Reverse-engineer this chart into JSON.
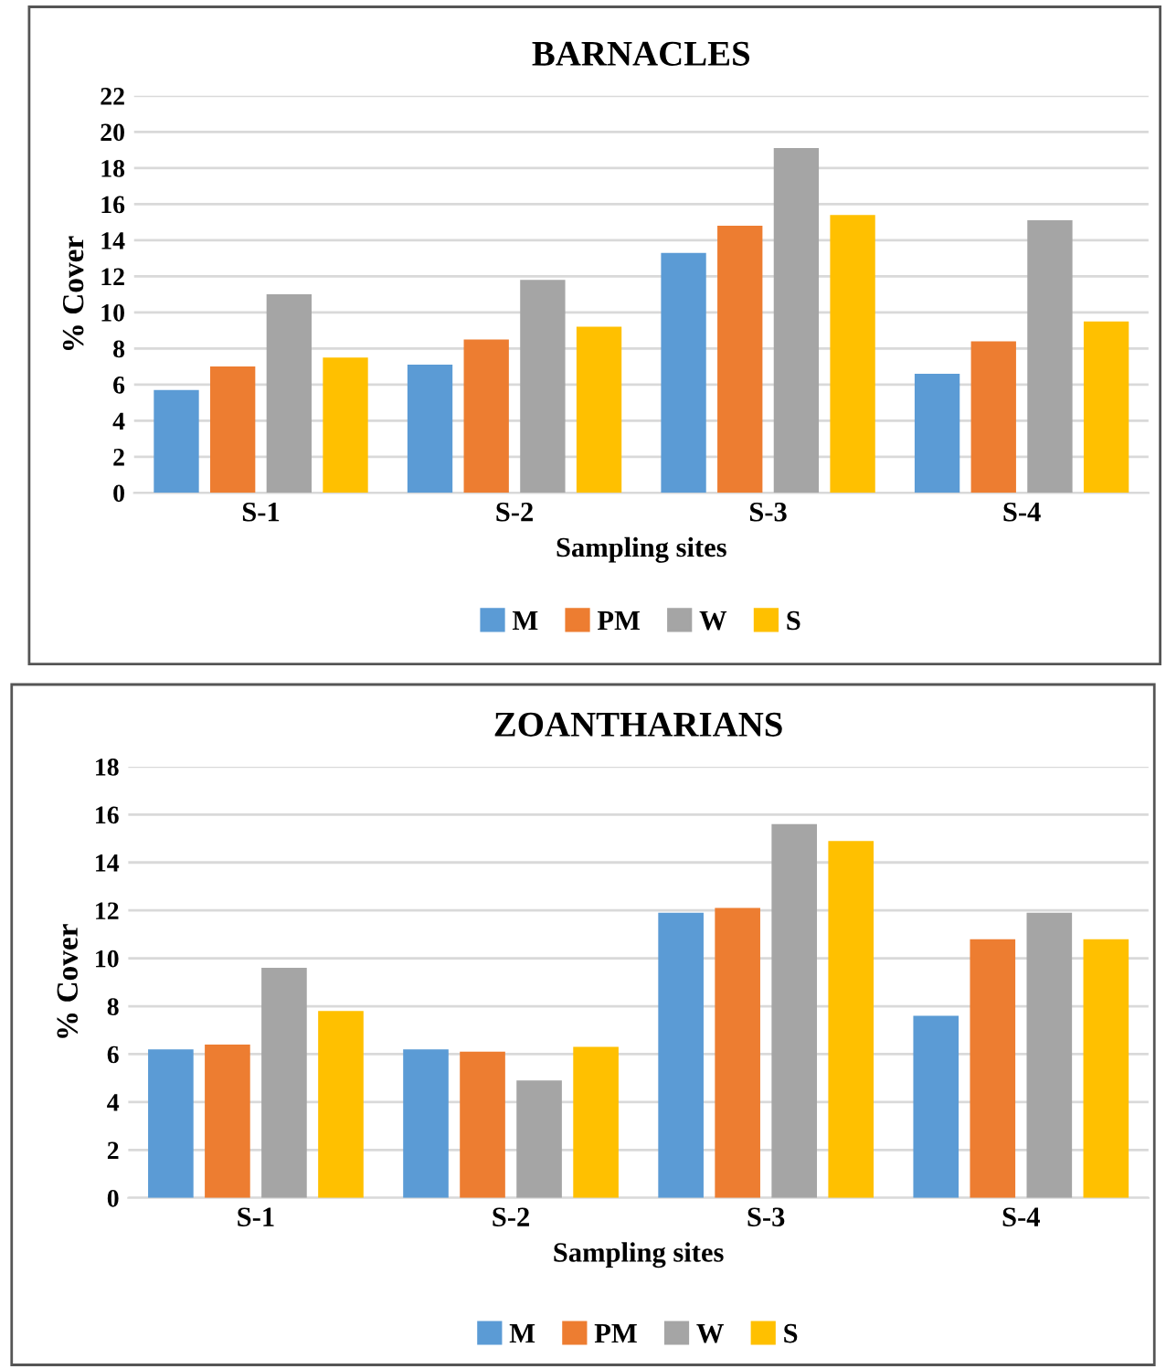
{
  "chart_data": [
    {
      "type": "bar",
      "title": "BARNACLES",
      "xlabel": "Sampling sites",
      "ylabel": "% Cover",
      "categories": [
        "S-1",
        "S-2",
        "S-3",
        "S-4"
      ],
      "series": [
        {
          "name": "M",
          "color": "#5b9bd5",
          "values": [
            5.7,
            7.1,
            13.3,
            6.6
          ]
        },
        {
          "name": "PM",
          "color": "#ed7d31",
          "values": [
            7.0,
            8.5,
            14.8,
            8.4
          ]
        },
        {
          "name": "W",
          "color": "#a5a5a5",
          "values": [
            11.0,
            11.8,
            19.1,
            15.1
          ]
        },
        {
          "name": "S",
          "color": "#ffc000",
          "values": [
            7.5,
            9.2,
            15.4,
            9.5
          ]
        }
      ],
      "ylim": [
        0,
        22
      ],
      "yticks": [
        0,
        2,
        4,
        6,
        8,
        10,
        12,
        14,
        16,
        18,
        20,
        22
      ],
      "grid": "y",
      "legend": "bottom"
    },
    {
      "type": "bar",
      "title": "ZOANTHARIANS",
      "xlabel": "Sampling sites",
      "ylabel": "% Cover",
      "categories": [
        "S-1",
        "S-2",
        "S-3",
        "S-4"
      ],
      "series": [
        {
          "name": "M",
          "color": "#5b9bd5",
          "values": [
            6.2,
            6.2,
            11.9,
            7.6
          ]
        },
        {
          "name": "PM",
          "color": "#ed7d31",
          "values": [
            6.4,
            6.1,
            12.1,
            10.8
          ]
        },
        {
          "name": "W",
          "color": "#a5a5a5",
          "values": [
            9.6,
            4.9,
            15.6,
            11.9
          ]
        },
        {
          "name": "S",
          "color": "#ffc000",
          "values": [
            7.8,
            6.3,
            14.9,
            10.8
          ]
        }
      ],
      "ylim": [
        0,
        18
      ],
      "yticks": [
        0,
        2,
        4,
        6,
        8,
        10,
        12,
        14,
        16,
        18
      ],
      "grid": "y",
      "legend": "bottom"
    }
  ]
}
